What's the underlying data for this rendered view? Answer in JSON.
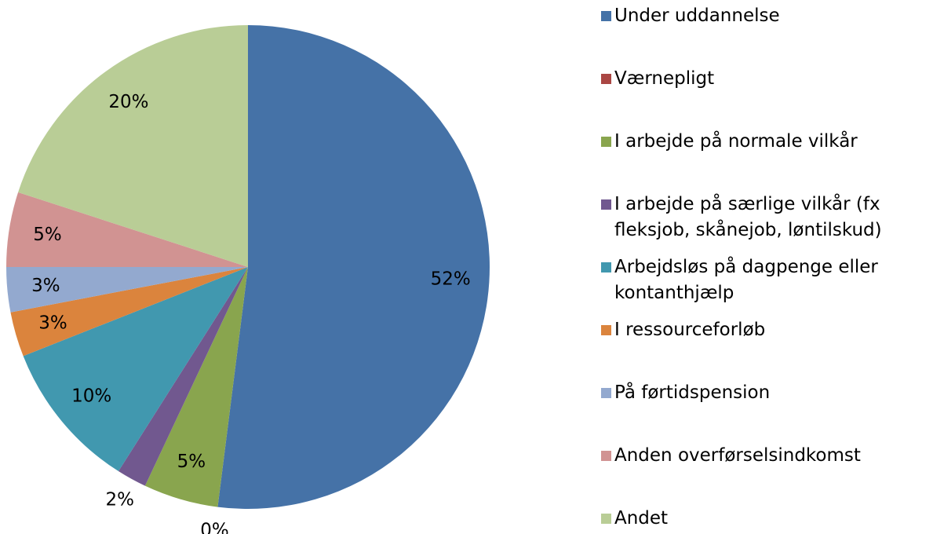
{
  "chart_data": {
    "type": "pie",
    "categories": [
      "Under uddannelse",
      "Værnepligt",
      "I arbejde på normale vilkår",
      "I arbejde på særlige vilkår (fx fleksjob, skånejob, løntilskud)",
      "Arbejdsløs på dagpenge eller kontanthjælp",
      "I ressourceforløb",
      "På førtidspension",
      "Anden overførselsindkomst",
      "Andet"
    ],
    "values": [
      52,
      0,
      5,
      2,
      10,
      3,
      3,
      5,
      20
    ],
    "value_labels": [
      "52%",
      "0%",
      "5%",
      "2%",
      "10%",
      "3%",
      "3%",
      "5%",
      "20%"
    ],
    "colors": [
      "#4572a7",
      "#aa4643",
      "#89a54e",
      "#71588f",
      "#4198af",
      "#db843d",
      "#93a9cf",
      "#d19392",
      "#b9cd96"
    ],
    "legend": "right"
  }
}
